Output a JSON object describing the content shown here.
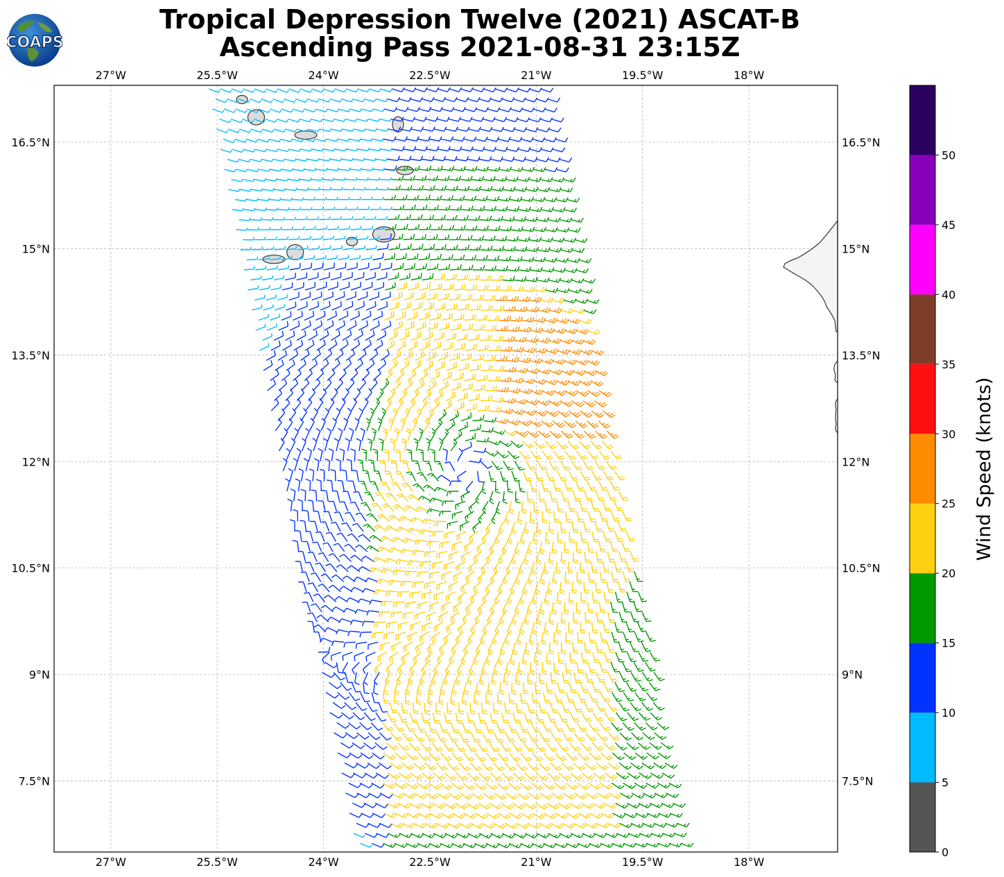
{
  "header": {
    "logo_text": "COAPS",
    "title_line1": "Tropical Depression Twelve (2021) ASCAT-B",
    "title_line2": "Ascending Pass 2021-08-31 23:15Z"
  },
  "map": {
    "lon_range": [
      -27.8,
      -16.75
    ],
    "lat_range": [
      6.5,
      17.3
    ],
    "lon_ticks": [
      {
        "value": -27,
        "label": "27°W"
      },
      {
        "value": -25.5,
        "label": "25.5°W"
      },
      {
        "value": -24,
        "label": "24°W"
      },
      {
        "value": -22.5,
        "label": "22.5°W"
      },
      {
        "value": -21,
        "label": "21°W"
      },
      {
        "value": -19.5,
        "label": "19.5°W"
      },
      {
        "value": -18,
        "label": "18°W"
      }
    ],
    "lat_ticks": [
      {
        "value": 16.5,
        "label": "16.5°N"
      },
      {
        "value": 15,
        "label": "15°N"
      },
      {
        "value": 13.5,
        "label": "13.5°N"
      },
      {
        "value": 12,
        "label": "12°N"
      },
      {
        "value": 10.5,
        "label": "10.5°N"
      },
      {
        "value": 9,
        "label": "9°N"
      },
      {
        "value": 7.5,
        "label": "7.5°N"
      }
    ],
    "gridlines": true,
    "storm_center": {
      "lon": -22.0,
      "lat": 11.9
    },
    "islands": [
      {
        "name": "Santo Antão",
        "lon": -25.15,
        "lat": 17.1
      },
      {
        "name": "São Vicente",
        "lon": -24.95,
        "lat": 16.85
      },
      {
        "name": "São Nicolau",
        "lon": -24.25,
        "lat": 16.6
      },
      {
        "name": "Sal",
        "lon": -22.95,
        "lat": 16.75
      },
      {
        "name": "Boa Vista",
        "lon": -22.85,
        "lat": 16.1
      },
      {
        "name": "Maio",
        "lon": -23.15,
        "lat": 15.2
      },
      {
        "name": "Santiago",
        "lon": -23.6,
        "lat": 15.1
      },
      {
        "name": "Fogo",
        "lon": -24.4,
        "lat": 14.95
      },
      {
        "name": "Brava",
        "lon": -24.7,
        "lat": 14.85
      }
    ]
  },
  "colorbar": {
    "label": "Wind Speed (knots)",
    "ticks": [
      "0",
      "5",
      "10",
      "15",
      "20",
      "25",
      "30",
      "35",
      "40",
      "45",
      "50"
    ],
    "bins": [
      {
        "min": 0,
        "max": 5,
        "color": "#555555"
      },
      {
        "min": 5,
        "max": 10,
        "color": "#00bbff"
      },
      {
        "min": 10,
        "max": 15,
        "color": "#0033ff"
      },
      {
        "min": 15,
        "max": 20,
        "color": "#009900"
      },
      {
        "min": 20,
        "max": 25,
        "color": "#ffd010"
      },
      {
        "min": 25,
        "max": 30,
        "color": "#ff8c00"
      },
      {
        "min": 30,
        "max": 35,
        "color": "#ff1010"
      },
      {
        "min": 35,
        "max": 40,
        "color": "#7f3e2a"
      },
      {
        "min": 40,
        "max": 45,
        "color": "#ff00ff"
      },
      {
        "min": 45,
        "max": 50,
        "color": "#8800bb"
      },
      {
        "min": 50,
        "max": 55,
        "color": "#2b0060"
      }
    ]
  }
}
